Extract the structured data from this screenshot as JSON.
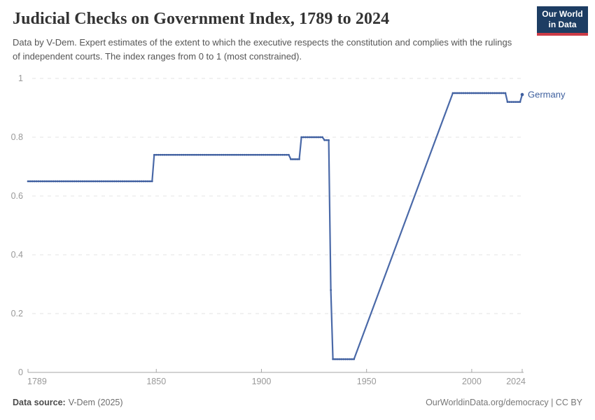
{
  "header": {
    "title": "Judicial Checks on Government Index, 1789 to 2024",
    "subtitle": "Data by V-Dem. Expert estimates of the extent to which the executive respects the constitution and complies with the rulings of independent courts. The index ranges from 0 to 1 (most constrained)."
  },
  "logo": {
    "line1": "Our World",
    "line2": "in Data",
    "bg_color": "#1d3d63",
    "accent_color": "#cc3b46"
  },
  "footer": {
    "datasource_label": "Data source:",
    "datasource_value": "V-Dem (2025)",
    "credit": "OurWorldinData.org/democracy | CC BY"
  },
  "colors": {
    "line": "#4a69a8",
    "dot": "#3e5e9f",
    "entity_label": "#3d5f9e",
    "grid": "#e3e3e3",
    "axis": "#a6a6a6",
    "tick_text": "#999999"
  },
  "chart_data": {
    "type": "line",
    "title": "Judicial Checks on Government Index, 1789 to 2024",
    "xlabel": "",
    "ylabel": "",
    "x_range": [
      1789,
      2024
    ],
    "y_range": [
      0,
      1
    ],
    "grid": "horizontal dashed",
    "legend_position": "end-of-line label",
    "y_ticks": [
      {
        "v": 0,
        "label": "0"
      },
      {
        "v": 0.2,
        "label": "0.2"
      },
      {
        "v": 0.4,
        "label": "0.4"
      },
      {
        "v": 0.6,
        "label": "0.6"
      },
      {
        "v": 0.8,
        "label": "0.8"
      },
      {
        "v": 1,
        "label": "1"
      }
    ],
    "x_ticks": [
      {
        "v": 1789,
        "label": "1789"
      },
      {
        "v": 1850,
        "label": "1850"
      },
      {
        "v": 1900,
        "label": "1900"
      },
      {
        "v": 1950,
        "label": "1950"
      },
      {
        "v": 2000,
        "label": "2000"
      },
      {
        "v": 2024,
        "label": "2024"
      }
    ],
    "series": [
      {
        "name": "Germany",
        "segments": [
          {
            "from": 1789,
            "to": 1848,
            "value": 0.65
          },
          {
            "from": 1849,
            "to": 1913,
            "value": 0.74
          },
          {
            "from": 1914,
            "to": 1918,
            "value": 0.725
          },
          {
            "from": 1919,
            "to": 1929,
            "value": 0.8
          },
          {
            "from": 1930,
            "to": 1932,
            "value": 0.79
          },
          {
            "from": 1933,
            "to": 1933,
            "value": 0.28
          },
          {
            "from": 1934,
            "to": 1944,
            "value": 0.045
          },
          {
            "from": 1991,
            "to": 2016,
            "value": 0.95
          },
          {
            "from": 2017,
            "to": 2023,
            "value": 0.92
          },
          {
            "from": 2024,
            "to": 2024,
            "value": 0.945
          }
        ],
        "gap_interpolated_between": [
          1944,
          1991
        ]
      }
    ]
  }
}
